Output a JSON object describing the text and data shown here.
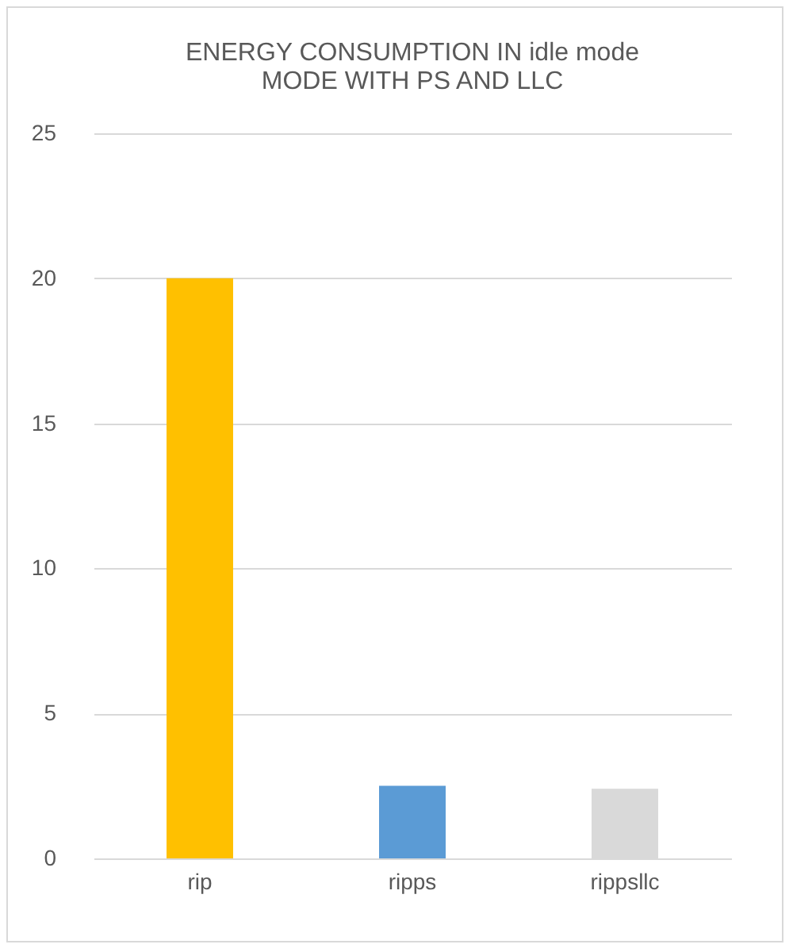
{
  "chart_data": {
    "type": "bar",
    "title": "ENERGY CONSUMPTION IN idle mode\nMODE WITH PS AND LLC",
    "categories": [
      "rip",
      "ripps",
      "rippsllc"
    ],
    "values": [
      20,
      2.5,
      2.4
    ],
    "colors": [
      "#ffc000",
      "#5b9bd5",
      "#d9d9d9"
    ],
    "ylim": [
      0,
      25
    ],
    "yticks": [
      0,
      5,
      10,
      15,
      20,
      25
    ],
    "grid": "y"
  }
}
